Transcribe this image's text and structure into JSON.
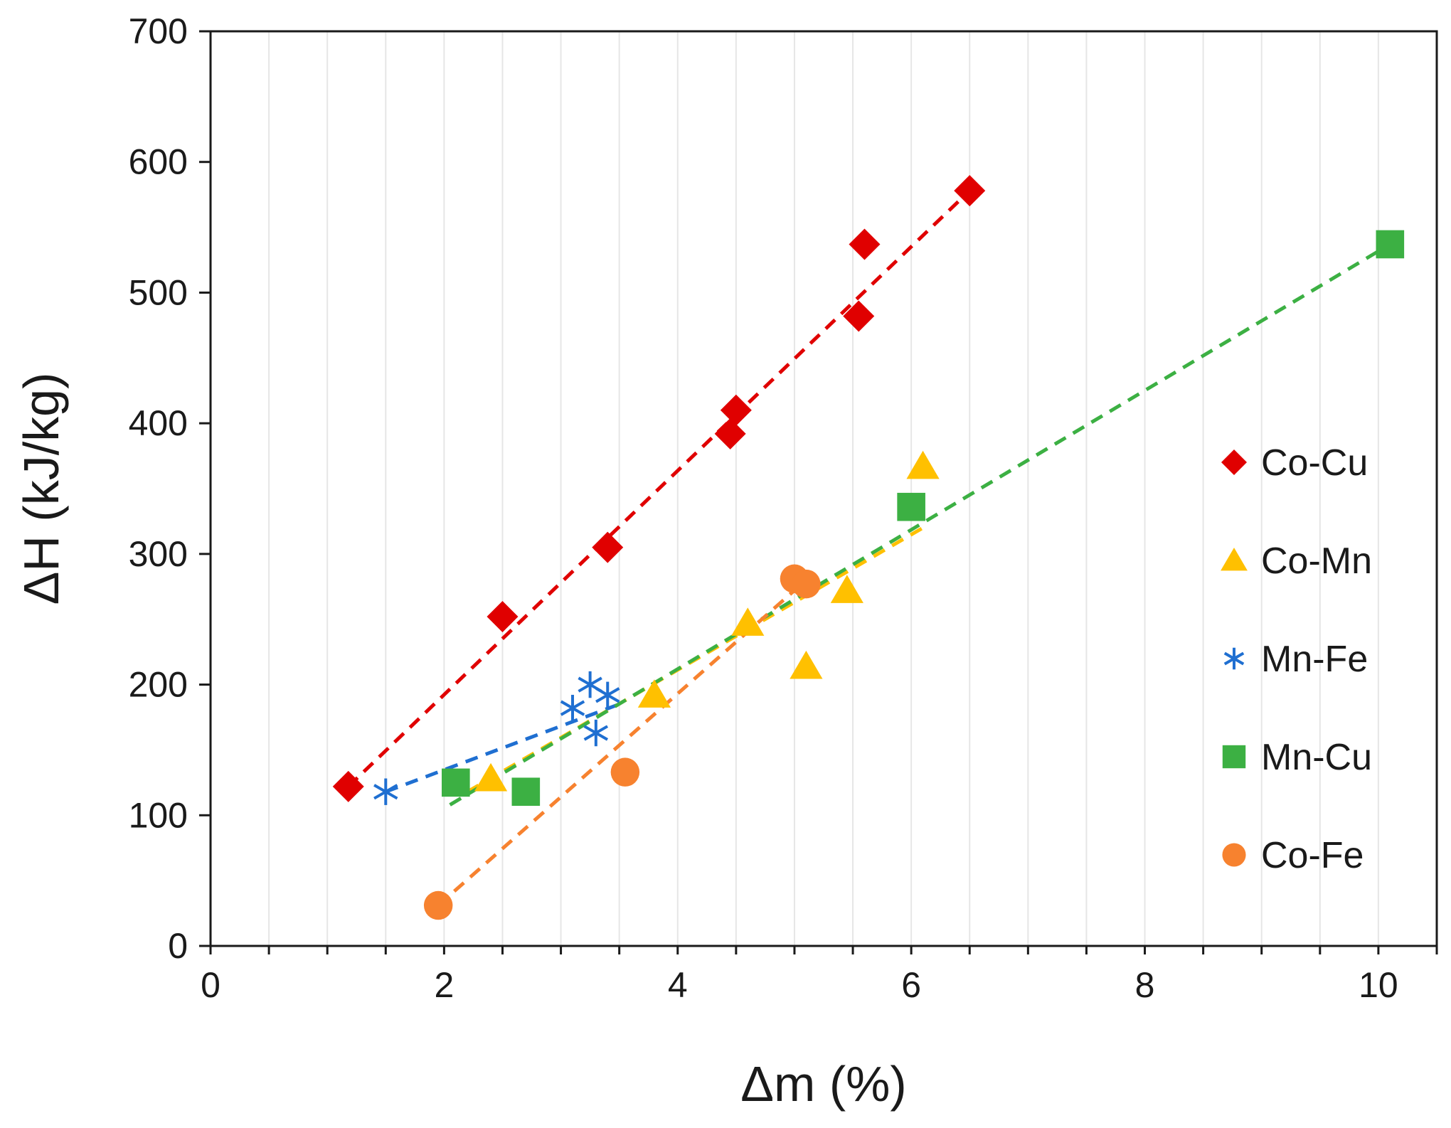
{
  "chart_data": {
    "type": "scatter",
    "title": "",
    "xlabel": "Δm (%)",
    "ylabel": "ΔH (kJ/kg)",
    "xlim": [
      0,
      10.5
    ],
    "ylim": [
      0,
      700
    ],
    "x_ticks": [
      0,
      2,
      4,
      6,
      8,
      10
    ],
    "y_ticks": [
      0,
      100,
      200,
      300,
      400,
      500,
      600,
      700
    ],
    "x_tick_labels": [
      "0",
      "2",
      "4",
      "6",
      "8",
      "10"
    ],
    "y_tick_labels": [
      "0",
      "100",
      "200",
      "300",
      "400",
      "500",
      "600",
      "700"
    ],
    "grid": "vertical minor gridlines",
    "legend_position": "right",
    "series": [
      {
        "name": "Co-Cu",
        "marker": "diamond",
        "color": "#e00000",
        "points": [
          [
            1.18,
            122
          ],
          [
            2.5,
            252
          ],
          [
            3.4,
            305
          ],
          [
            4.45,
            392
          ],
          [
            4.5,
            410
          ],
          [
            5.55,
            482
          ],
          [
            5.6,
            537
          ],
          [
            6.5,
            578
          ]
        ],
        "trendline": [
          [
            1.18,
            122
          ],
          [
            6.5,
            578
          ]
        ]
      },
      {
        "name": "Co-Mn",
        "marker": "triangle",
        "color": "#ffc000",
        "points": [
          [
            2.4,
            128
          ],
          [
            3.8,
            192
          ],
          [
            4.6,
            247
          ],
          [
            5.1,
            214
          ],
          [
            5.45,
            272
          ],
          [
            6.1,
            367
          ]
        ],
        "trendline": [
          [
            2.2,
            118
          ],
          [
            6.1,
            320
          ]
        ]
      },
      {
        "name": "Mn-Fe",
        "marker": "asterisk",
        "color": "#1f6fd1",
        "points": [
          [
            1.5,
            118
          ],
          [
            3.1,
            182
          ],
          [
            3.25,
            200
          ],
          [
            3.3,
            163
          ],
          [
            3.4,
            192
          ]
        ],
        "trendline": [
          [
            1.5,
            118
          ],
          [
            3.5,
            185
          ]
        ]
      },
      {
        "name": "Mn-Cu",
        "marker": "square",
        "color": "#3cb043",
        "points": [
          [
            2.1,
            125
          ],
          [
            2.7,
            118
          ],
          [
            6.0,
            336
          ],
          [
            10.1,
            537
          ]
        ],
        "trendline": [
          [
            2.05,
            108
          ],
          [
            10.1,
            537
          ]
        ]
      },
      {
        "name": "Co-Fe",
        "marker": "circle",
        "color": "#f7822f",
        "points": [
          [
            1.95,
            31
          ],
          [
            3.55,
            133
          ],
          [
            5.0,
            281
          ],
          [
            5.1,
            277
          ]
        ],
        "trendline": [
          [
            1.95,
            31
          ],
          [
            5.1,
            280
          ]
        ]
      }
    ]
  }
}
